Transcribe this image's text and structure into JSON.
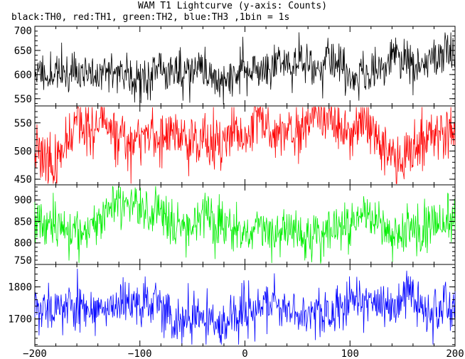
{
  "chart_data": {
    "title": "WAM T1 Lightcurve (y-axis: Counts)",
    "subtitle": "black:TH0, red:TH1, green:TH2, blue:TH3 ,1bin = 1s",
    "type": "line",
    "xlim": [
      -200,
      200
    ],
    "x_ticks": [
      -200,
      -100,
      0,
      100,
      200
    ],
    "grid": false,
    "panels": [
      {
        "name": "TH0",
        "color": "#000000",
        "ylim": [
          535,
          700
        ],
        "y_ticks": [
          550,
          600,
          650,
          700
        ],
        "mean": 605,
        "sd": 22,
        "lo": 538,
        "hi": 695,
        "seed": 11
      },
      {
        "name": "TH1",
        "color": "#ff0000",
        "ylim": [
          440,
          580
        ],
        "y_ticks": [
          450,
          500,
          550
        ],
        "mean": 508,
        "sd": 24,
        "lo": 442,
        "hi": 578,
        "seed": 23
      },
      {
        "name": "TH2",
        "color": "#00ee00",
        "ylim": [
          750,
          935
        ],
        "y_ticks": [
          750,
          800,
          850,
          900
        ],
        "mean": 848,
        "sd": 27,
        "lo": 752,
        "hi": 932,
        "seed": 37
      },
      {
        "name": "TH3",
        "color": "#0000ff",
        "ylim": [
          1615,
          1870
        ],
        "y_ticks": [
          1700,
          1800
        ],
        "mean": 1752,
        "sd": 38,
        "lo": 1620,
        "hi": 1865,
        "seed": 53
      }
    ]
  }
}
